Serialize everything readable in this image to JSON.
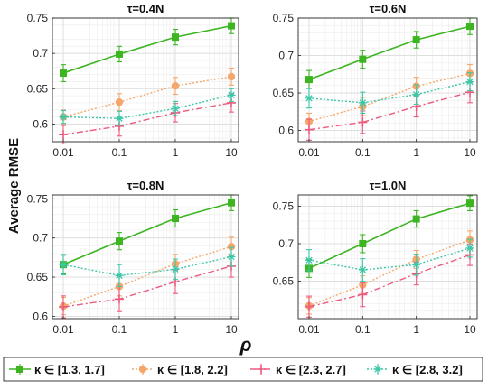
{
  "figure": {
    "ylabel": "Average RMSE",
    "xlabel": "ρ"
  },
  "legend": [
    {
      "label": "κ ∈ [1.3, 1.7]",
      "color": "#3cb521",
      "marker": "square"
    },
    {
      "label": "κ ∈ [1.8, 2.2]",
      "color": "#f5a66a",
      "marker": "circle"
    },
    {
      "label": "κ ∈ [2.3, 2.7]",
      "color": "#ec5b7e",
      "marker": "plus"
    },
    {
      "label": "κ ∈ [2.8, 3.2]",
      "color": "#3cc7a8",
      "marker": "asterisk"
    }
  ],
  "chart_data": [
    {
      "type": "line",
      "title": "τ=0.4N",
      "x": [
        0.01,
        0.1,
        1,
        10
      ],
      "xticks": [
        "0.01",
        "0.1",
        "1",
        "10"
      ],
      "x_scale": "log",
      "ylim": [
        0.575,
        0.75
      ],
      "yticks": [
        0.6,
        0.65,
        0.7,
        0.75
      ],
      "ytick_labels": [
        "0.6",
        "0.65",
        "0.7",
        "0.75"
      ],
      "grid": true,
      "series": [
        {
          "name": "κ ∈ [1.3, 1.7]",
          "values": [
            0.672,
            0.699,
            0.723,
            0.739
          ],
          "errors": [
            0.012,
            0.011,
            0.011,
            0.011
          ]
        },
        {
          "name": "κ ∈ [1.8, 2.2]",
          "values": [
            0.61,
            0.631,
            0.654,
            0.667
          ],
          "errors": [
            0.01,
            0.012,
            0.012,
            0.012
          ]
        },
        {
          "name": "κ ∈ [2.3, 2.7]",
          "values": [
            0.585,
            0.597,
            0.616,
            0.63
          ],
          "errors": [
            0.013,
            0.014,
            0.013,
            0.013
          ]
        },
        {
          "name": "κ ∈ [2.8, 3.2]",
          "values": [
            0.61,
            0.608,
            0.622,
            0.641
          ],
          "errors": [
            0.009,
            0.01,
            0.01,
            0.009
          ]
        }
      ]
    },
    {
      "type": "line",
      "title": "τ=0.6N",
      "x": [
        0.01,
        0.1,
        1,
        10
      ],
      "xticks": [
        "0.01",
        "0.1",
        "1",
        "10"
      ],
      "x_scale": "log",
      "ylim": [
        0.585,
        0.75
      ],
      "yticks": [
        0.6,
        0.65,
        0.7,
        0.75
      ],
      "ytick_labels": [
        "0.6",
        "0.65",
        "0.7",
        "0.75"
      ],
      "grid": true,
      "series": [
        {
          "name": "κ ∈ [1.3, 1.7]",
          "values": [
            0.668,
            0.695,
            0.721,
            0.739
          ],
          "errors": [
            0.012,
            0.012,
            0.011,
            0.011
          ]
        },
        {
          "name": "κ ∈ [1.8, 2.2]",
          "values": [
            0.612,
            0.632,
            0.659,
            0.676
          ],
          "errors": [
            0.011,
            0.012,
            0.012,
            0.012
          ]
        },
        {
          "name": "κ ∈ [2.3, 2.7]",
          "values": [
            0.601,
            0.611,
            0.632,
            0.651
          ],
          "errors": [
            0.014,
            0.015,
            0.014,
            0.014
          ]
        },
        {
          "name": "κ ∈ [2.8, 3.2]",
          "values": [
            0.643,
            0.637,
            0.648,
            0.665
          ],
          "errors": [
            0.013,
            0.014,
            0.013,
            0.012
          ]
        }
      ]
    },
    {
      "type": "line",
      "title": "τ=0.8N",
      "x": [
        0.01,
        0.1,
        1,
        10
      ],
      "xticks": [
        "0.01",
        "0.1",
        "1",
        "10"
      ],
      "x_scale": "log",
      "ylim": [
        0.597,
        0.755
      ],
      "yticks": [
        0.6,
        0.65,
        0.7,
        0.75
      ],
      "ytick_labels": [
        "0.6",
        "0.65",
        "0.7",
        "0.75"
      ],
      "grid": true,
      "series": [
        {
          "name": "κ ∈ [1.3, 1.7]",
          "values": [
            0.666,
            0.696,
            0.725,
            0.745
          ],
          "errors": [
            0.012,
            0.011,
            0.011,
            0.01
          ]
        },
        {
          "name": "κ ∈ [1.8, 2.2]",
          "values": [
            0.613,
            0.638,
            0.667,
            0.689
          ],
          "errors": [
            0.011,
            0.012,
            0.012,
            0.012
          ]
        },
        {
          "name": "κ ∈ [2.3, 2.7]",
          "values": [
            0.612,
            0.622,
            0.644,
            0.664
          ],
          "errors": [
            0.014,
            0.016,
            0.015,
            0.014
          ]
        },
        {
          "name": "κ ∈ [2.8, 3.2]",
          "values": [
            0.666,
            0.652,
            0.66,
            0.676
          ],
          "errors": [
            0.013,
            0.014,
            0.013,
            0.012
          ]
        }
      ]
    },
    {
      "type": "line",
      "title": "τ=1.0N",
      "x": [
        0.01,
        0.1,
        1,
        10
      ],
      "xticks": [
        "0.01",
        "0.1",
        "1",
        "10"
      ],
      "x_scale": "log",
      "ylim": [
        0.6,
        0.765
      ],
      "yticks": [
        0.65,
        0.7,
        0.75
      ],
      "ytick_labels": [
        "0.65",
        "0.7",
        "0.75"
      ],
      "grid": true,
      "series": [
        {
          "name": "κ ∈ [1.3, 1.7]",
          "values": [
            0.667,
            0.7,
            0.733,
            0.754
          ],
          "errors": [
            0.012,
            0.012,
            0.011,
            0.01
          ]
        },
        {
          "name": "κ ∈ [1.8, 2.2]",
          "values": [
            0.617,
            0.645,
            0.679,
            0.705
          ],
          "errors": [
            0.011,
            0.012,
            0.012,
            0.012
          ]
        },
        {
          "name": "κ ∈ [2.3, 2.7]",
          "values": [
            0.616,
            0.632,
            0.66,
            0.685
          ],
          "errors": [
            0.014,
            0.016,
            0.015,
            0.014
          ]
        },
        {
          "name": "κ ∈ [2.8, 3.2]",
          "values": [
            0.678,
            0.665,
            0.672,
            0.694
          ],
          "errors": [
            0.014,
            0.015,
            0.014,
            0.012
          ]
        }
      ]
    }
  ]
}
